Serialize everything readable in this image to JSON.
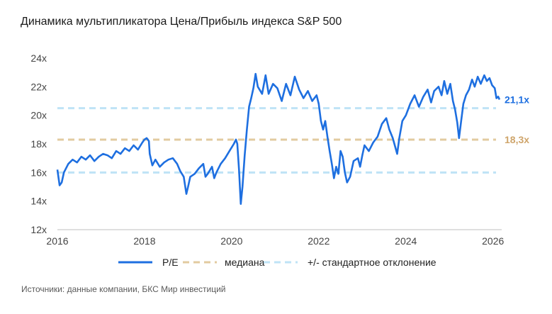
{
  "title": "Динамика мультипликатора Цена/Прибыль индекса S&P 500",
  "source": "Источники: данные компании, БКС Мир инвестиций",
  "colors": {
    "pe": "#1e6fe0",
    "median": "#e2cba0",
    "stdev": "#bfe3f6",
    "median_label": "#cfa56b",
    "pe_label": "#1e6fe0"
  },
  "chart_data": {
    "type": "line",
    "title": "Динамика мультипликатора Цена/Прибыль индекса S&P 500",
    "xlabel": "",
    "ylabel": "",
    "xlim": [
      2016,
      2026.2
    ],
    "ylim": [
      12,
      24
    ],
    "x_ticks": [
      2016,
      2018,
      2020,
      2022,
      2024,
      2026
    ],
    "x_tick_labels": [
      "2016",
      "2018",
      "2020",
      "2022",
      "2024",
      "2026"
    ],
    "y_ticks": [
      12,
      14,
      16,
      18,
      20,
      22,
      24
    ],
    "y_tick_labels": [
      "12x",
      "14x",
      "16x",
      "18x",
      "20x",
      "22x",
      "24x"
    ],
    "grid": false,
    "legend_position": "bottom",
    "legend": [
      "P/E",
      "медиана",
      "+/- стандартное отклонение"
    ],
    "series": [
      {
        "name": "P/E",
        "style": "solid",
        "points": [
          [
            2016.0,
            16.2
          ],
          [
            2016.05,
            15.1
          ],
          [
            2016.1,
            15.3
          ],
          [
            2016.15,
            16.0
          ],
          [
            2016.25,
            16.6
          ],
          [
            2016.35,
            16.9
          ],
          [
            2016.45,
            16.7
          ],
          [
            2016.55,
            17.1
          ],
          [
            2016.65,
            16.9
          ],
          [
            2016.75,
            17.2
          ],
          [
            2016.85,
            16.8
          ],
          [
            2016.95,
            17.1
          ],
          [
            2017.05,
            17.3
          ],
          [
            2017.15,
            17.2
          ],
          [
            2017.25,
            17.0
          ],
          [
            2017.35,
            17.5
          ],
          [
            2017.45,
            17.3
          ],
          [
            2017.55,
            17.7
          ],
          [
            2017.65,
            17.5
          ],
          [
            2017.75,
            17.9
          ],
          [
            2017.85,
            17.6
          ],
          [
            2017.95,
            18.1
          ],
          [
            2018.0,
            18.3
          ],
          [
            2018.05,
            18.4
          ],
          [
            2018.1,
            18.2
          ],
          [
            2018.12,
            17.3
          ],
          [
            2018.18,
            16.5
          ],
          [
            2018.25,
            16.9
          ],
          [
            2018.35,
            16.4
          ],
          [
            2018.45,
            16.7
          ],
          [
            2018.55,
            16.9
          ],
          [
            2018.65,
            17.0
          ],
          [
            2018.75,
            16.6
          ],
          [
            2018.82,
            16.1
          ],
          [
            2018.9,
            15.7
          ],
          [
            2018.96,
            14.5
          ],
          [
            2019.0,
            15.0
          ],
          [
            2019.05,
            15.7
          ],
          [
            2019.15,
            15.9
          ],
          [
            2019.25,
            16.3
          ],
          [
            2019.35,
            16.6
          ],
          [
            2019.4,
            15.7
          ],
          [
            2019.45,
            15.9
          ],
          [
            2019.55,
            16.4
          ],
          [
            2019.6,
            15.6
          ],
          [
            2019.65,
            16.0
          ],
          [
            2019.75,
            16.6
          ],
          [
            2019.85,
            17.0
          ],
          [
            2019.95,
            17.5
          ],
          [
            2020.05,
            18.0
          ],
          [
            2020.1,
            18.3
          ],
          [
            2020.13,
            18.0
          ],
          [
            2020.17,
            16.2
          ],
          [
            2020.21,
            13.8
          ],
          [
            2020.25,
            15.0
          ],
          [
            2020.3,
            17.2
          ],
          [
            2020.35,
            19.0
          ],
          [
            2020.4,
            20.6
          ],
          [
            2020.45,
            21.2
          ],
          [
            2020.5,
            21.9
          ],
          [
            2020.55,
            22.9
          ],
          [
            2020.6,
            22.0
          ],
          [
            2020.7,
            21.5
          ],
          [
            2020.78,
            22.8
          ],
          [
            2020.85,
            21.5
          ],
          [
            2020.95,
            22.2
          ],
          [
            2021.05,
            21.9
          ],
          [
            2021.15,
            21.0
          ],
          [
            2021.25,
            22.2
          ],
          [
            2021.35,
            21.4
          ],
          [
            2021.45,
            22.7
          ],
          [
            2021.55,
            21.8
          ],
          [
            2021.65,
            21.2
          ],
          [
            2021.75,
            21.7
          ],
          [
            2021.85,
            21.0
          ],
          [
            2021.95,
            21.4
          ],
          [
            2022.0,
            20.8
          ],
          [
            2022.05,
            19.6
          ],
          [
            2022.1,
            19.0
          ],
          [
            2022.15,
            19.6
          ],
          [
            2022.2,
            18.5
          ],
          [
            2022.25,
            17.5
          ],
          [
            2022.3,
            16.6
          ],
          [
            2022.35,
            15.6
          ],
          [
            2022.4,
            16.4
          ],
          [
            2022.45,
            15.9
          ],
          [
            2022.5,
            17.5
          ],
          [
            2022.55,
            17.1
          ],
          [
            2022.6,
            16.0
          ],
          [
            2022.65,
            15.3
          ],
          [
            2022.72,
            15.7
          ],
          [
            2022.8,
            16.8
          ],
          [
            2022.9,
            17.0
          ],
          [
            2022.95,
            16.4
          ],
          [
            2023.0,
            17.2
          ],
          [
            2023.05,
            17.9
          ],
          [
            2023.15,
            17.5
          ],
          [
            2023.25,
            18.1
          ],
          [
            2023.35,
            18.5
          ],
          [
            2023.45,
            19.4
          ],
          [
            2023.55,
            19.8
          ],
          [
            2023.62,
            19.0
          ],
          [
            2023.7,
            18.4
          ],
          [
            2023.8,
            17.3
          ],
          [
            2023.85,
            18.4
          ],
          [
            2023.92,
            19.6
          ],
          [
            2024.0,
            20.0
          ],
          [
            2024.1,
            20.8
          ],
          [
            2024.2,
            21.4
          ],
          [
            2024.3,
            20.6
          ],
          [
            2024.4,
            21.3
          ],
          [
            2024.5,
            21.8
          ],
          [
            2024.58,
            20.9
          ],
          [
            2024.65,
            21.7
          ],
          [
            2024.75,
            22.0
          ],
          [
            2024.82,
            21.4
          ],
          [
            2024.88,
            22.4
          ],
          [
            2024.95,
            21.5
          ],
          [
            2025.02,
            22.2
          ],
          [
            2025.08,
            21.0
          ],
          [
            2025.13,
            20.4
          ],
          [
            2025.18,
            19.5
          ],
          [
            2025.22,
            18.4
          ],
          [
            2025.27,
            19.6
          ],
          [
            2025.32,
            20.8
          ],
          [
            2025.38,
            21.4
          ],
          [
            2025.45,
            21.8
          ],
          [
            2025.52,
            22.5
          ],
          [
            2025.58,
            22.0
          ],
          [
            2025.65,
            22.7
          ],
          [
            2025.72,
            22.2
          ],
          [
            2025.8,
            22.8
          ],
          [
            2025.86,
            22.4
          ],
          [
            2025.92,
            22.6
          ],
          [
            2025.98,
            22.1
          ],
          [
            2026.04,
            21.9
          ],
          [
            2026.08,
            21.2
          ],
          [
            2026.12,
            21.3
          ],
          [
            2026.15,
            21.1
          ]
        ]
      },
      {
        "name": "медиана",
        "style": "dashed",
        "value": 18.3
      },
      {
        "name": "+/- стандартное отклонение",
        "style": "dashed",
        "values": [
          16.0,
          20.5
        ]
      }
    ],
    "annotations": [
      {
        "text": "21,1x",
        "series": "P/E",
        "value": 21.1
      },
      {
        "text": "18,3x",
        "series": "медиана",
        "value": 18.3
      }
    ]
  }
}
